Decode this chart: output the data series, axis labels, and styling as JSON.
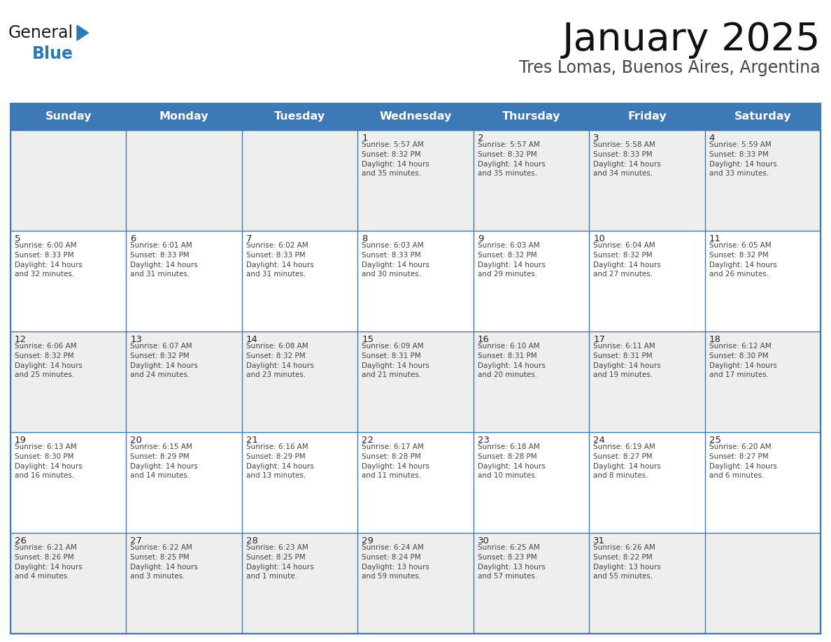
{
  "title": "January 2025",
  "subtitle": "Tres Lomas, Buenos Aires, Argentina",
  "header_bg": "#3D7AB5",
  "header_text_color": "#FFFFFF",
  "border_color": "#3D7AB5",
  "day_names": [
    "Sunday",
    "Monday",
    "Tuesday",
    "Wednesday",
    "Thursday",
    "Friday",
    "Saturday"
  ],
  "text_color": "#333333",
  "days": [
    {
      "day": 1,
      "col": 3,
      "row": 0,
      "sunrise": "5:57 AM",
      "sunset": "8:32 PM",
      "daylight": "14 hours and 35 minutes"
    },
    {
      "day": 2,
      "col": 4,
      "row": 0,
      "sunrise": "5:57 AM",
      "sunset": "8:32 PM",
      "daylight": "14 hours and 35 minutes"
    },
    {
      "day": 3,
      "col": 5,
      "row": 0,
      "sunrise": "5:58 AM",
      "sunset": "8:33 PM",
      "daylight": "14 hours and 34 minutes"
    },
    {
      "day": 4,
      "col": 6,
      "row": 0,
      "sunrise": "5:59 AM",
      "sunset": "8:33 PM",
      "daylight": "14 hours and 33 minutes"
    },
    {
      "day": 5,
      "col": 0,
      "row": 1,
      "sunrise": "6:00 AM",
      "sunset": "8:33 PM",
      "daylight": "14 hours and 32 minutes"
    },
    {
      "day": 6,
      "col": 1,
      "row": 1,
      "sunrise": "6:01 AM",
      "sunset": "8:33 PM",
      "daylight": "14 hours and 31 minutes"
    },
    {
      "day": 7,
      "col": 2,
      "row": 1,
      "sunrise": "6:02 AM",
      "sunset": "8:33 PM",
      "daylight": "14 hours and 31 minutes"
    },
    {
      "day": 8,
      "col": 3,
      "row": 1,
      "sunrise": "6:03 AM",
      "sunset": "8:33 PM",
      "daylight": "14 hours and 30 minutes"
    },
    {
      "day": 9,
      "col": 4,
      "row": 1,
      "sunrise": "6:03 AM",
      "sunset": "8:32 PM",
      "daylight": "14 hours and 29 minutes"
    },
    {
      "day": 10,
      "col": 5,
      "row": 1,
      "sunrise": "6:04 AM",
      "sunset": "8:32 PM",
      "daylight": "14 hours and 27 minutes"
    },
    {
      "day": 11,
      "col": 6,
      "row": 1,
      "sunrise": "6:05 AM",
      "sunset": "8:32 PM",
      "daylight": "14 hours and 26 minutes"
    },
    {
      "day": 12,
      "col": 0,
      "row": 2,
      "sunrise": "6:06 AM",
      "sunset": "8:32 PM",
      "daylight": "14 hours and 25 minutes"
    },
    {
      "day": 13,
      "col": 1,
      "row": 2,
      "sunrise": "6:07 AM",
      "sunset": "8:32 PM",
      "daylight": "14 hours and 24 minutes"
    },
    {
      "day": 14,
      "col": 2,
      "row": 2,
      "sunrise": "6:08 AM",
      "sunset": "8:32 PM",
      "daylight": "14 hours and 23 minutes"
    },
    {
      "day": 15,
      "col": 3,
      "row": 2,
      "sunrise": "6:09 AM",
      "sunset": "8:31 PM",
      "daylight": "14 hours and 21 minutes"
    },
    {
      "day": 16,
      "col": 4,
      "row": 2,
      "sunrise": "6:10 AM",
      "sunset": "8:31 PM",
      "daylight": "14 hours and 20 minutes"
    },
    {
      "day": 17,
      "col": 5,
      "row": 2,
      "sunrise": "6:11 AM",
      "sunset": "8:31 PM",
      "daylight": "14 hours and 19 minutes"
    },
    {
      "day": 18,
      "col": 6,
      "row": 2,
      "sunrise": "6:12 AM",
      "sunset": "8:30 PM",
      "daylight": "14 hours and 17 minutes"
    },
    {
      "day": 19,
      "col": 0,
      "row": 3,
      "sunrise": "6:13 AM",
      "sunset": "8:30 PM",
      "daylight": "14 hours and 16 minutes"
    },
    {
      "day": 20,
      "col": 1,
      "row": 3,
      "sunrise": "6:15 AM",
      "sunset": "8:29 PM",
      "daylight": "14 hours and 14 minutes"
    },
    {
      "day": 21,
      "col": 2,
      "row": 3,
      "sunrise": "6:16 AM",
      "sunset": "8:29 PM",
      "daylight": "14 hours and 13 minutes"
    },
    {
      "day": 22,
      "col": 3,
      "row": 3,
      "sunrise": "6:17 AM",
      "sunset": "8:28 PM",
      "daylight": "14 hours and 11 minutes"
    },
    {
      "day": 23,
      "col": 4,
      "row": 3,
      "sunrise": "6:18 AM",
      "sunset": "8:28 PM",
      "daylight": "14 hours and 10 minutes"
    },
    {
      "day": 24,
      "col": 5,
      "row": 3,
      "sunrise": "6:19 AM",
      "sunset": "8:27 PM",
      "daylight": "14 hours and 8 minutes"
    },
    {
      "day": 25,
      "col": 6,
      "row": 3,
      "sunrise": "6:20 AM",
      "sunset": "8:27 PM",
      "daylight": "14 hours and 6 minutes"
    },
    {
      "day": 26,
      "col": 0,
      "row": 4,
      "sunrise": "6:21 AM",
      "sunset": "8:26 PM",
      "daylight": "14 hours and 4 minutes"
    },
    {
      "day": 27,
      "col": 1,
      "row": 4,
      "sunrise": "6:22 AM",
      "sunset": "8:25 PM",
      "daylight": "14 hours and 3 minutes"
    },
    {
      "day": 28,
      "col": 2,
      "row": 4,
      "sunrise": "6:23 AM",
      "sunset": "8:25 PM",
      "daylight": "14 hours and 1 minute"
    },
    {
      "day": 29,
      "col": 3,
      "row": 4,
      "sunrise": "6:24 AM",
      "sunset": "8:24 PM",
      "daylight": "13 hours and 59 minutes"
    },
    {
      "day": 30,
      "col": 4,
      "row": 4,
      "sunrise": "6:25 AM",
      "sunset": "8:23 PM",
      "daylight": "13 hours and 57 minutes"
    },
    {
      "day": 31,
      "col": 5,
      "row": 4,
      "sunrise": "6:26 AM",
      "sunset": "8:22 PM",
      "daylight": "13 hours and 55 minutes"
    }
  ],
  "num_rows": 5,
  "logo_general_color": "#1a1a1a",
  "logo_blue_color": "#2B7BB9",
  "logo_triangle_color": "#2B7BB9",
  "fig_width": 11.88,
  "fig_height": 9.18,
  "dpi": 100
}
